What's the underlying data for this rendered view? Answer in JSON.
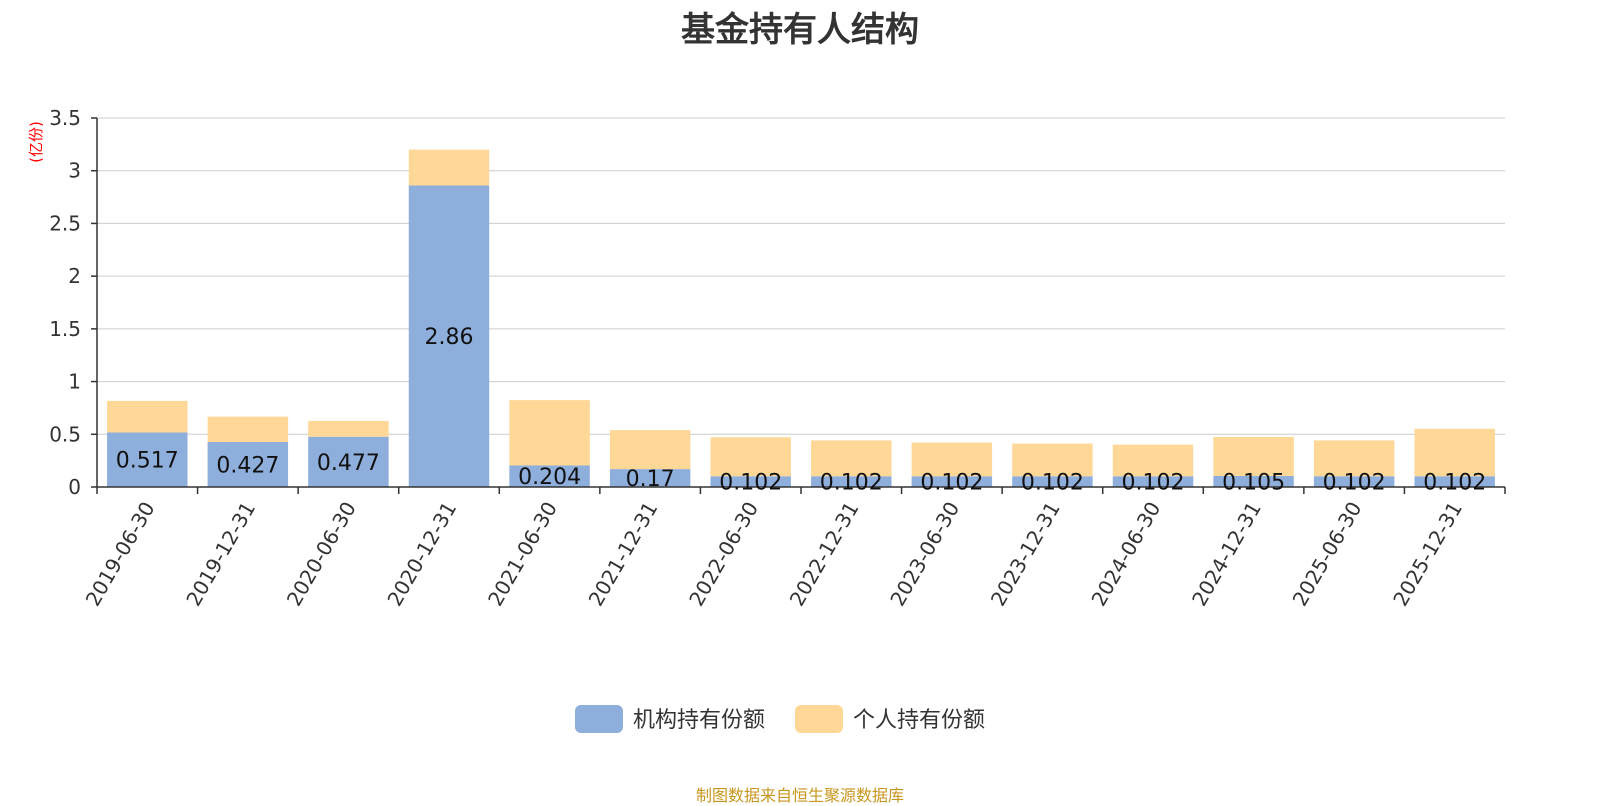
{
  "title": "基金持有人结构",
  "source_note": "制图数据来自恒生聚源数据库",
  "chart_data": {
    "type": "bar",
    "stacked": true,
    "title": "基金持有人结构",
    "unit_label": "(亿份)",
    "categories": [
      "2019-06-30",
      "2019-12-31",
      "2020-06-30",
      "2020-12-31",
      "2021-06-30",
      "2021-12-31",
      "2022-06-30",
      "2022-12-31",
      "2023-06-30",
      "2023-12-31",
      "2024-06-30",
      "2024-12-31",
      "2025-06-30",
      "2025-12-31"
    ],
    "series": [
      {
        "name": "机构持有份额",
        "color": "#8eaedc",
        "values": [
          0.517,
          0.427,
          0.477,
          2.86,
          0.204,
          0.17,
          0.102,
          0.102,
          0.102,
          0.102,
          0.102,
          0.105,
          0.102,
          0.102
        ]
      },
      {
        "name": "个人持有份额",
        "color": "#ffd897",
        "values": [
          0.3,
          0.24,
          0.15,
          0.34,
          0.62,
          0.37,
          0.37,
          0.34,
          0.32,
          0.31,
          0.3,
          0.37,
          0.34,
          0.45
        ]
      }
    ],
    "ylim": [
      0,
      3.5
    ],
    "yticks": [
      "0",
      "0.5",
      "1",
      "1.5",
      "2",
      "2.5",
      "3",
      "3.5"
    ],
    "grid": true,
    "legend_position": "bottom",
    "data_labels_series": "机构持有份额"
  }
}
